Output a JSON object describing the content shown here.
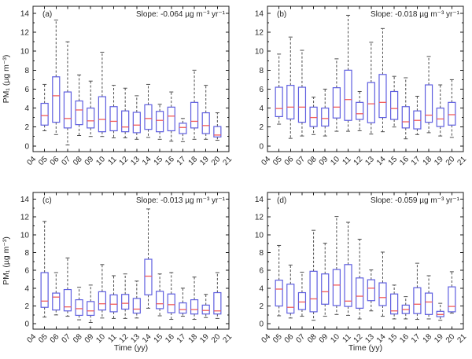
{
  "figure": {
    "background": "#ffffff",
    "frame_color": "#1a1a1a",
    "text_color": "#262626",
    "box_stroke_color": "#5e5ee0",
    "box_fill_color": "#ffffff",
    "median_color": "#f25c5c",
    "whisker_color": "#4d4d4d",
    "box_value_format": [
      "whisker_low",
      "q1",
      "median",
      "q3",
      "whisker_high"
    ]
  },
  "chart_data": [
    {
      "type": "box",
      "label": "(a)",
      "annotation": "Slope: -0.064 µg m⁻³ yr⁻¹",
      "slope_ug_m3_yr": -0.064,
      "ylabel": "PM₁ (µg m⁻³)",
      "xlabel": "",
      "xlim": [
        4,
        21
      ],
      "ylim": [
        -0.6,
        14.75
      ],
      "yticks": [
        0,
        2,
        4,
        6,
        8,
        10,
        12,
        14
      ],
      "yticks_minor": [
        1,
        3,
        5,
        7,
        9,
        11,
        13
      ],
      "xtick_labels": [
        "04",
        "05",
        "06",
        "07",
        "08",
        "09",
        "10",
        "11",
        "12",
        "13",
        "14",
        "15",
        "16",
        "17",
        "18",
        "19",
        "20",
        "21"
      ],
      "categories": [
        "05",
        "06",
        "07",
        "08",
        "09",
        "10",
        "11",
        "12",
        "13",
        "14",
        "15",
        "16",
        "17",
        "18",
        "19",
        "20"
      ],
      "boxes": [
        [
          1.6,
          2.2,
          3.2,
          4.5,
          6.5
        ],
        [
          1.2,
          2.5,
          5.3,
          7.3,
          13.3
        ],
        [
          0.1,
          1.9,
          2.9,
          5.7,
          11.0
        ],
        [
          1.1,
          2.25,
          3.8,
          4.75,
          7.5
        ],
        [
          1.0,
          1.9,
          2.65,
          4.0,
          6.85
        ],
        [
          1.0,
          1.5,
          2.8,
          5.2,
          9.9
        ],
        [
          0.85,
          1.6,
          2.6,
          4.15,
          6.4
        ],
        [
          0.85,
          1.5,
          2.0,
          3.7,
          6.1
        ],
        [
          0.7,
          1.4,
          2.2,
          3.55,
          5.3
        ],
        [
          0.9,
          1.75,
          2.9,
          4.35,
          6.5
        ],
        [
          0.7,
          1.5,
          2.7,
          3.65,
          4.4
        ],
        [
          0.5,
          1.6,
          3.15,
          4.1,
          5.7
        ],
        [
          0.45,
          1.3,
          1.95,
          2.4,
          2.9
        ],
        [
          0.7,
          1.9,
          2.6,
          4.6,
          8.0
        ],
        [
          0.7,
          1.3,
          2.15,
          3.5,
          6.4
        ],
        [
          0.6,
          0.95,
          1.15,
          2.05,
          3.5
        ]
      ]
    },
    {
      "type": "box",
      "label": "(b)",
      "annotation": "Slope: -0.018 µg m⁻³ yr⁻¹",
      "slope_ug_m3_yr": -0.018,
      "ylabel": "",
      "xlabel": "",
      "xlim": [
        4,
        21
      ],
      "ylim": [
        -0.6,
        14.75
      ],
      "yticks": [
        0,
        2,
        4,
        6,
        8,
        10,
        12,
        14
      ],
      "yticks_minor": [
        1,
        3,
        5,
        7,
        9,
        11,
        13
      ],
      "xtick_labels": [
        "04",
        "05",
        "06",
        "07",
        "08",
        "09",
        "10",
        "11",
        "12",
        "13",
        "14",
        "15",
        "16",
        "17",
        "18",
        "19",
        "20",
        "21"
      ],
      "categories": [
        "05",
        "06",
        "07",
        "08",
        "09",
        "10",
        "11",
        "12",
        "13",
        "14",
        "15",
        "16",
        "17",
        "18",
        "19",
        "20"
      ],
      "boxes": [
        [
          2.3,
          3.1,
          3.95,
          6.2,
          9.7
        ],
        [
          0.8,
          2.85,
          4.1,
          6.4,
          11.5
        ],
        [
          1.05,
          2.5,
          4.1,
          6.2,
          10.1
        ],
        [
          1.2,
          2.05,
          3.0,
          4.1,
          5.15
        ],
        [
          1.05,
          2.1,
          2.9,
          4.0,
          6.0
        ],
        [
          1.55,
          2.95,
          4.1,
          6.15,
          9.2
        ],
        [
          1.55,
          2.7,
          4.9,
          8.0,
          13.8
        ],
        [
          1.6,
          2.8,
          3.4,
          4.6,
          5.75
        ],
        [
          1.25,
          2.45,
          4.45,
          6.7,
          10.95
        ],
        [
          1.5,
          3.0,
          4.6,
          7.55,
          12.4
        ],
        [
          2.0,
          2.8,
          3.95,
          5.75,
          7.35
        ],
        [
          0.75,
          1.9,
          2.55,
          4.15,
          7.2
        ],
        [
          1.2,
          1.8,
          2.7,
          3.7,
          5.25
        ],
        [
          1.4,
          2.5,
          3.25,
          6.45,
          9.45
        ],
        [
          1.05,
          2.05,
          2.85,
          4.0,
          6.45
        ],
        [
          0.9,
          2.2,
          3.3,
          4.6,
          7.0
        ]
      ]
    },
    {
      "type": "box",
      "label": "(c)",
      "annotation": "Slope: -0.013 µg m⁻³ yr⁻¹",
      "slope_ug_m3_yr": -0.013,
      "ylabel": "PM₁ (µg m⁻³)",
      "xlabel": "Time (yy)",
      "xlim": [
        4,
        21
      ],
      "ylim": [
        -0.6,
        14.75
      ],
      "yticks": [
        0,
        2,
        4,
        6,
        8,
        10,
        12,
        14
      ],
      "yticks_minor": [
        1,
        3,
        5,
        7,
        9,
        11,
        13
      ],
      "xtick_labels": [
        "04",
        "05",
        "06",
        "07",
        "08",
        "09",
        "10",
        "11",
        "12",
        "13",
        "14",
        "15",
        "16",
        "17",
        "18",
        "19",
        "20",
        "21"
      ],
      "categories": [
        "05",
        "06",
        "07",
        "08",
        "09",
        "10",
        "11",
        "12",
        "13",
        "14",
        "15",
        "16",
        "17",
        "18",
        "19",
        "20"
      ],
      "boxes": [
        [
          0.75,
          1.85,
          2.55,
          5.75,
          11.5
        ],
        [
          1.0,
          1.55,
          3.0,
          3.45,
          5.75
        ],
        [
          0.85,
          1.45,
          1.9,
          3.85,
          7.4
        ],
        [
          0.45,
          0.95,
          1.7,
          2.7,
          4.1
        ],
        [
          0.15,
          0.95,
          1.45,
          2.5,
          4.35
        ],
        [
          0.65,
          1.55,
          2.25,
          3.6,
          6.65
        ],
        [
          0.6,
          1.35,
          2.2,
          3.25,
          5.4
        ],
        [
          0.6,
          1.65,
          2.3,
          3.3,
          5.6
        ],
        [
          0.65,
          1.2,
          1.65,
          2.85,
          4.8
        ],
        [
          1.75,
          3.25,
          5.35,
          7.25,
          12.9
        ],
        [
          0.9,
          1.7,
          2.25,
          3.65,
          5.6
        ],
        [
          0.5,
          1.25,
          2.15,
          3.35,
          5.75
        ],
        [
          0.85,
          1.2,
          1.6,
          2.35,
          4.0
        ],
        [
          0.5,
          1.1,
          1.6,
          2.7,
          5.25
        ],
        [
          0.7,
          1.1,
          1.5,
          2.1,
          3.3
        ],
        [
          0.6,
          1.1,
          1.45,
          3.5,
          5.75
        ]
      ]
    },
    {
      "type": "box",
      "label": "(d)",
      "annotation": "Slope: -0.059 µg m⁻³ yr⁻¹",
      "slope_ug_m3_yr": -0.059,
      "ylabel": "",
      "xlabel": "Time (yy)",
      "xlim": [
        4,
        21
      ],
      "ylim": [
        -0.6,
        14.75
      ],
      "yticks": [
        0,
        2,
        4,
        6,
        8,
        10,
        12,
        14
      ],
      "yticks_minor": [
        1,
        3,
        5,
        7,
        9,
        11,
        13
      ],
      "xtick_labels": [
        "04",
        "05",
        "06",
        "07",
        "08",
        "09",
        "10",
        "11",
        "12",
        "13",
        "14",
        "15",
        "16",
        "17",
        "18",
        "19",
        "20",
        "21"
      ],
      "categories": [
        "05",
        "06",
        "07",
        "08",
        "09",
        "10",
        "11",
        "12",
        "13",
        "14",
        "15",
        "16",
        "17",
        "18",
        "19",
        "20"
      ],
      "boxes": [
        [
          0.9,
          2.0,
          3.9,
          4.9,
          8.8
        ],
        [
          0.65,
          1.2,
          1.85,
          4.45,
          6.6
        ],
        [
          0.85,
          1.6,
          2.45,
          3.5,
          5.8
        ],
        [
          0.4,
          1.35,
          2.8,
          5.9,
          10.5
        ],
        [
          0.85,
          2.2,
          3.6,
          5.6,
          9.05
        ],
        [
          1.05,
          2.05,
          4.35,
          6.1,
          12.05
        ],
        [
          0.95,
          1.95,
          2.55,
          6.65,
          11.4
        ],
        [
          0.55,
          1.75,
          3.1,
          5.15,
          9.5
        ],
        [
          1.45,
          2.6,
          4.0,
          4.95,
          6.05
        ],
        [
          0.85,
          2.05,
          2.95,
          4.6,
          8.05
        ],
        [
          0.55,
          1.1,
          1.45,
          3.35,
          4.35
        ],
        [
          0.55,
          1.15,
          1.6,
          2.1,
          3.05
        ],
        [
          0.5,
          1.15,
          2.2,
          4.05,
          6.8
        ],
        [
          0.55,
          1.05,
          2.45,
          3.45,
          5.4
        ],
        [
          0.4,
          0.8,
          1.05,
          1.4,
          2.3
        ],
        [
          1.2,
          1.35,
          1.95,
          4.15,
          5.85
        ]
      ]
    }
  ]
}
